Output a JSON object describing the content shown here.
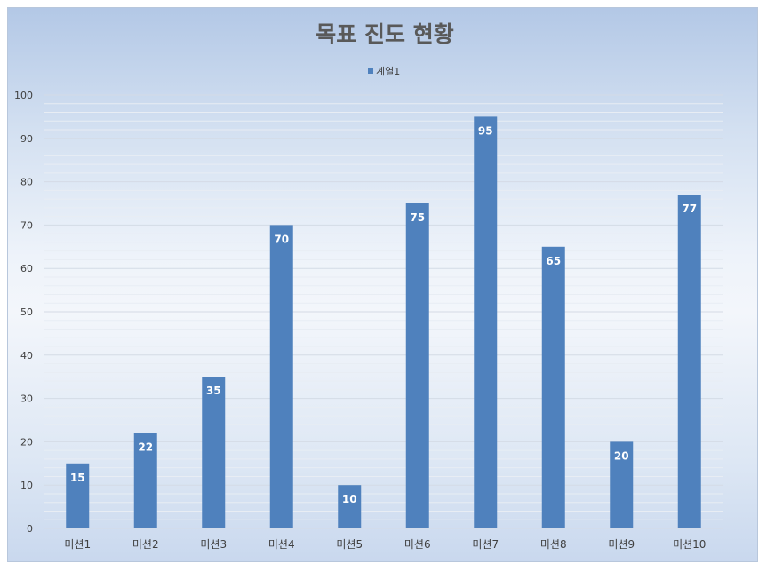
{
  "chart_data": {
    "type": "bar",
    "title": "목표 진도 현황",
    "categories": [
      "미션1",
      "미션2",
      "미션3",
      "미션4",
      "미션5",
      "미션6",
      "미션7",
      "미션8",
      "미션9",
      "미션10"
    ],
    "series": [
      {
        "name": "계열1",
        "values": [
          15,
          22,
          35,
          70,
          10,
          75,
          95,
          65,
          20,
          77
        ],
        "color": "#4f81bd"
      }
    ],
    "ylim": [
      0,
      100
    ],
    "yticks": [
      0,
      10,
      20,
      30,
      40,
      50,
      60,
      70,
      80,
      90,
      100
    ],
    "xlabel": "",
    "ylabel": "",
    "legend": "top",
    "grid": true,
    "data_labels": true
  }
}
